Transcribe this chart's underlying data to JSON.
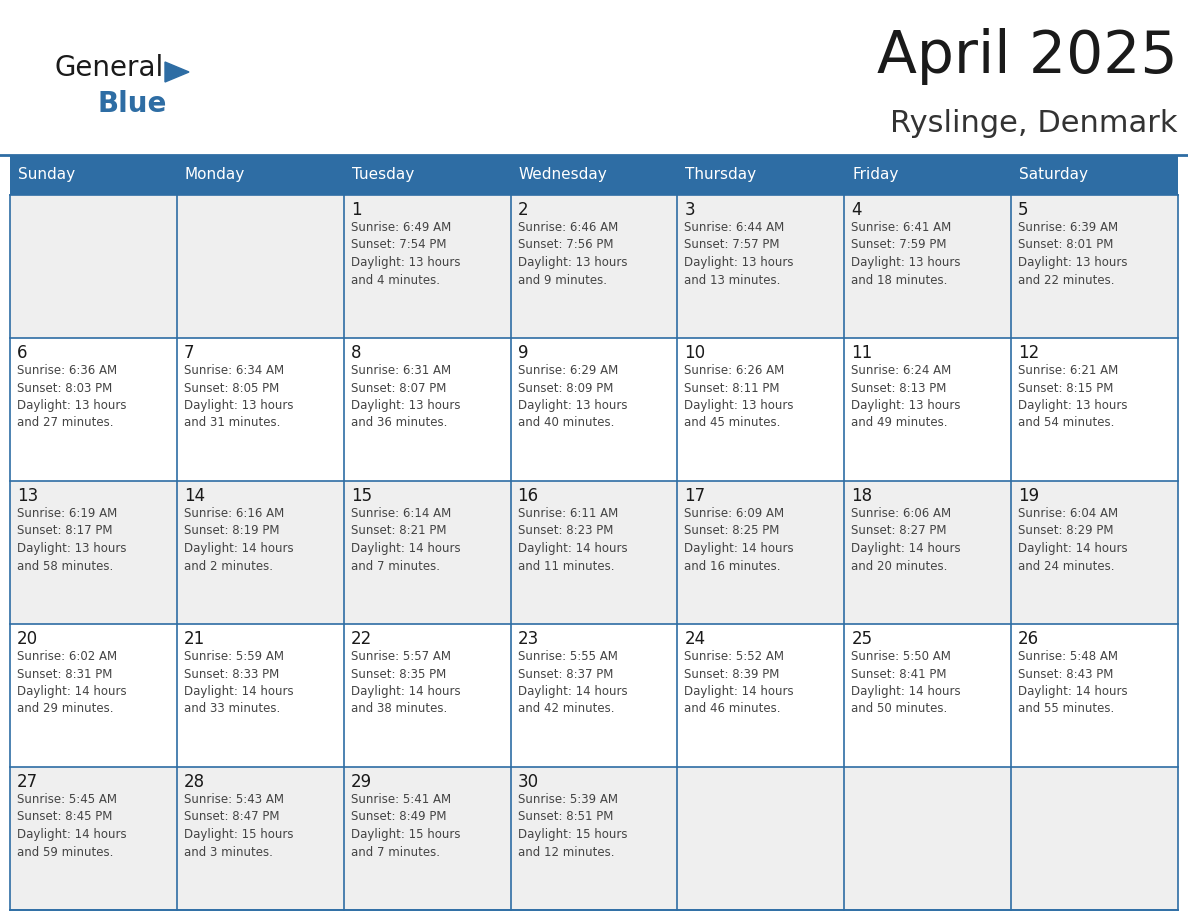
{
  "title": "April 2025",
  "subtitle": "Ryslinge, Denmark",
  "header_bg": "#2E6DA4",
  "header_text_color": "#FFFFFF",
  "cell_bg_odd": "#EFEFEF",
  "cell_bg_even": "#FFFFFF",
  "grid_line_color": "#2E6DA4",
  "day_number_color": "#1a1a1a",
  "cell_text_color": "#444444",
  "days_of_week": [
    "Sunday",
    "Monday",
    "Tuesday",
    "Wednesday",
    "Thursday",
    "Friday",
    "Saturday"
  ],
  "weeks": [
    [
      {
        "day": "",
        "info": ""
      },
      {
        "day": "",
        "info": ""
      },
      {
        "day": "1",
        "info": "Sunrise: 6:49 AM\nSunset: 7:54 PM\nDaylight: 13 hours\nand 4 minutes."
      },
      {
        "day": "2",
        "info": "Sunrise: 6:46 AM\nSunset: 7:56 PM\nDaylight: 13 hours\nand 9 minutes."
      },
      {
        "day": "3",
        "info": "Sunrise: 6:44 AM\nSunset: 7:57 PM\nDaylight: 13 hours\nand 13 minutes."
      },
      {
        "day": "4",
        "info": "Sunrise: 6:41 AM\nSunset: 7:59 PM\nDaylight: 13 hours\nand 18 minutes."
      },
      {
        "day": "5",
        "info": "Sunrise: 6:39 AM\nSunset: 8:01 PM\nDaylight: 13 hours\nand 22 minutes."
      }
    ],
    [
      {
        "day": "6",
        "info": "Sunrise: 6:36 AM\nSunset: 8:03 PM\nDaylight: 13 hours\nand 27 minutes."
      },
      {
        "day": "7",
        "info": "Sunrise: 6:34 AM\nSunset: 8:05 PM\nDaylight: 13 hours\nand 31 minutes."
      },
      {
        "day": "8",
        "info": "Sunrise: 6:31 AM\nSunset: 8:07 PM\nDaylight: 13 hours\nand 36 minutes."
      },
      {
        "day": "9",
        "info": "Sunrise: 6:29 AM\nSunset: 8:09 PM\nDaylight: 13 hours\nand 40 minutes."
      },
      {
        "day": "10",
        "info": "Sunrise: 6:26 AM\nSunset: 8:11 PM\nDaylight: 13 hours\nand 45 minutes."
      },
      {
        "day": "11",
        "info": "Sunrise: 6:24 AM\nSunset: 8:13 PM\nDaylight: 13 hours\nand 49 minutes."
      },
      {
        "day": "12",
        "info": "Sunrise: 6:21 AM\nSunset: 8:15 PM\nDaylight: 13 hours\nand 54 minutes."
      }
    ],
    [
      {
        "day": "13",
        "info": "Sunrise: 6:19 AM\nSunset: 8:17 PM\nDaylight: 13 hours\nand 58 minutes."
      },
      {
        "day": "14",
        "info": "Sunrise: 6:16 AM\nSunset: 8:19 PM\nDaylight: 14 hours\nand 2 minutes."
      },
      {
        "day": "15",
        "info": "Sunrise: 6:14 AM\nSunset: 8:21 PM\nDaylight: 14 hours\nand 7 minutes."
      },
      {
        "day": "16",
        "info": "Sunrise: 6:11 AM\nSunset: 8:23 PM\nDaylight: 14 hours\nand 11 minutes."
      },
      {
        "day": "17",
        "info": "Sunrise: 6:09 AM\nSunset: 8:25 PM\nDaylight: 14 hours\nand 16 minutes."
      },
      {
        "day": "18",
        "info": "Sunrise: 6:06 AM\nSunset: 8:27 PM\nDaylight: 14 hours\nand 20 minutes."
      },
      {
        "day": "19",
        "info": "Sunrise: 6:04 AM\nSunset: 8:29 PM\nDaylight: 14 hours\nand 24 minutes."
      }
    ],
    [
      {
        "day": "20",
        "info": "Sunrise: 6:02 AM\nSunset: 8:31 PM\nDaylight: 14 hours\nand 29 minutes."
      },
      {
        "day": "21",
        "info": "Sunrise: 5:59 AM\nSunset: 8:33 PM\nDaylight: 14 hours\nand 33 minutes."
      },
      {
        "day": "22",
        "info": "Sunrise: 5:57 AM\nSunset: 8:35 PM\nDaylight: 14 hours\nand 38 minutes."
      },
      {
        "day": "23",
        "info": "Sunrise: 5:55 AM\nSunset: 8:37 PM\nDaylight: 14 hours\nand 42 minutes."
      },
      {
        "day": "24",
        "info": "Sunrise: 5:52 AM\nSunset: 8:39 PM\nDaylight: 14 hours\nand 46 minutes."
      },
      {
        "day": "25",
        "info": "Sunrise: 5:50 AM\nSunset: 8:41 PM\nDaylight: 14 hours\nand 50 minutes."
      },
      {
        "day": "26",
        "info": "Sunrise: 5:48 AM\nSunset: 8:43 PM\nDaylight: 14 hours\nand 55 minutes."
      }
    ],
    [
      {
        "day": "27",
        "info": "Sunrise: 5:45 AM\nSunset: 8:45 PM\nDaylight: 14 hours\nand 59 minutes."
      },
      {
        "day": "28",
        "info": "Sunrise: 5:43 AM\nSunset: 8:47 PM\nDaylight: 15 hours\nand 3 minutes."
      },
      {
        "day": "29",
        "info": "Sunrise: 5:41 AM\nSunset: 8:49 PM\nDaylight: 15 hours\nand 7 minutes."
      },
      {
        "day": "30",
        "info": "Sunrise: 5:39 AM\nSunset: 8:51 PM\nDaylight: 15 hours\nand 12 minutes."
      },
      {
        "day": "",
        "info": ""
      },
      {
        "day": "",
        "info": ""
      },
      {
        "day": "",
        "info": ""
      }
    ]
  ],
  "logo_text_general": "General",
  "logo_text_blue": "Blue",
  "logo_color_general": "#1a1a1a",
  "logo_color_blue": "#2E6DA4",
  "logo_triangle_color": "#2E6DA4"
}
